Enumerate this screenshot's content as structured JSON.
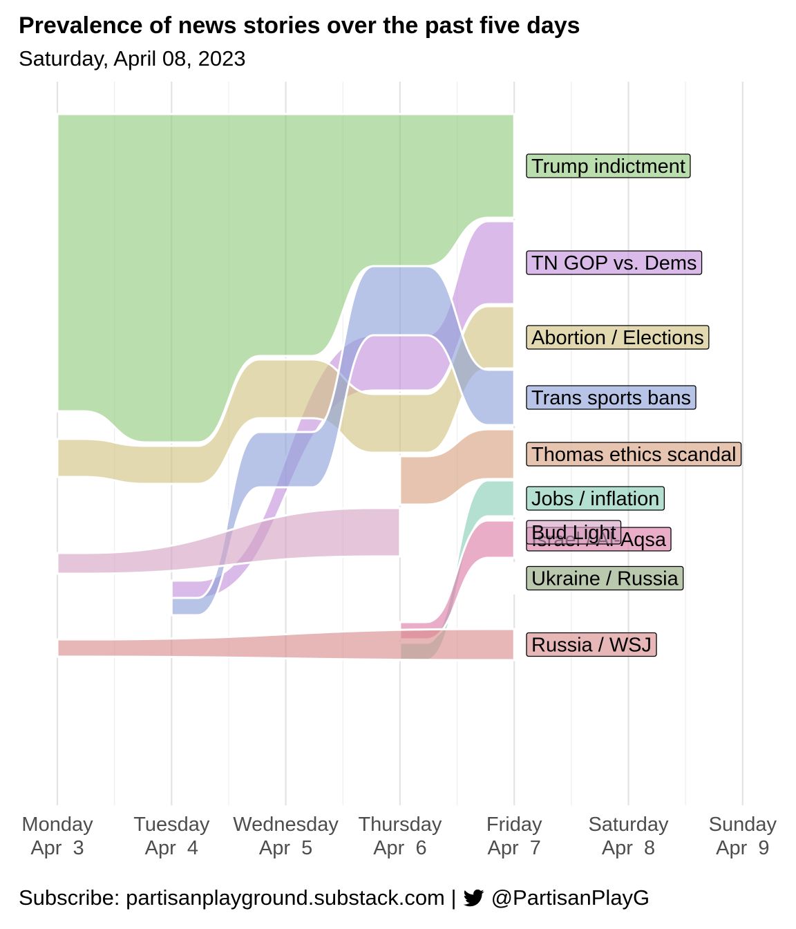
{
  "title": "Prevalence of news stories over the past five days",
  "subtitle": "Saturday, April 08, 2023",
  "caption": {
    "prefix": "Subscribe: partisanplayground.substack.com |",
    "handle": "@PartisanPlayG",
    "icon": "twitter-bird-icon"
  },
  "chart_data": {
    "type": "area",
    "subtype": "ranked bump/alluvial stream",
    "title": "Prevalence of news stories over the past five days",
    "subtitle": "Saturday, April 08, 2023",
    "x_ticks": [
      {
        "day": "Monday",
        "date": "Apr  3"
      },
      {
        "day": "Tuesday",
        "date": "Apr  4"
      },
      {
        "day": "Wednesday",
        "date": "Apr  5"
      },
      {
        "day": "Thursday",
        "date": "Apr  6"
      },
      {
        "day": "Friday",
        "date": "Apr  7"
      },
      {
        "day": "Saturday",
        "date": "Apr  8"
      },
      {
        "day": "Sunday",
        "date": "Apr  9"
      }
    ],
    "grid": true,
    "legend": "direct labels at right of Friday",
    "ylim": [
      0,
      100
    ],
    "series": [
      {
        "name": "Trump indictment",
        "color": "#8fc97c",
        "values": [
          {
            "day": 0,
            "y0": 0,
            "y1": 43
          },
          {
            "day": 1,
            "y0": 0,
            "y1": 47.5
          },
          {
            "day": 2,
            "y0": 0,
            "y1": 35
          },
          {
            "day": 3,
            "y0": 0,
            "y1": 22
          },
          {
            "day": 4,
            "y0": 0,
            "y1": 15
          }
        ]
      },
      {
        "name": "TN GOP vs. Dems",
        "color": "#c38fdb",
        "values": [
          {
            "day": 0,
            "y0": null,
            "y1": null
          },
          {
            "day": 1,
            "y0": 67.5,
            "y1": 70
          },
          {
            "day": 2,
            "y0": null,
            "y1": null
          },
          {
            "day": 3,
            "y0": 32,
            "y1": 40
          },
          {
            "day": 4,
            "y0": 15.5,
            "y1": 27.5
          }
        ]
      },
      {
        "name": "Abortion / Elections",
        "color": "#d2c17f",
        "values": [
          {
            "day": 0,
            "y0": 47,
            "y1": 52.5
          },
          {
            "day": 1,
            "y0": 48,
            "y1": 53.5
          },
          {
            "day": 2,
            "y0": 35.5,
            "y1": 44
          },
          {
            "day": 3,
            "y0": 40.5,
            "y1": 49
          },
          {
            "day": 4,
            "y0": 27.8,
            "y1": 36.8
          }
        ]
      },
      {
        "name": "Trans sports bans",
        "color": "#8d9fd8",
        "values": [
          {
            "day": 0,
            "y0": null,
            "y1": null
          },
          {
            "day": 1,
            "y0": 70,
            "y1": 72.5
          },
          {
            "day": 2,
            "y0": 46,
            "y1": 54
          },
          {
            "day": 3,
            "y0": 22,
            "y1": 32
          },
          {
            "day": 4,
            "y0": 37,
            "y1": 45
          }
        ]
      },
      {
        "name": "Thomas ethics scandal",
        "color": "#d9a07e",
        "values": [
          {
            "day": 0,
            "y0": null,
            "y1": null
          },
          {
            "day": 1,
            "y0": null,
            "y1": null
          },
          {
            "day": 2,
            "y0": null,
            "y1": null
          },
          {
            "day": 3,
            "y0": 49.5,
            "y1": 56.5
          },
          {
            "day": 4,
            "y0": 45.6,
            "y1": 52.8
          }
        ]
      },
      {
        "name": "Jobs / inflation",
        "color": "#85cdb5",
        "values": [
          {
            "day": 0,
            "y0": null,
            "y1": null
          },
          {
            "day": 1,
            "y0": null,
            "y1": null
          },
          {
            "day": 2,
            "y0": null,
            "y1": null
          },
          {
            "day": 3,
            "y0": 76.5,
            "y1": 79
          },
          {
            "day": 4,
            "y0": 53,
            "y1": 58.2
          }
        ]
      },
      {
        "name": "Israel / Al-Aqsa",
        "color": "#dd7aa7",
        "values": [
          {
            "day": 0,
            "y0": null,
            "y1": null
          },
          {
            "day": 1,
            "y0": null,
            "y1": null
          },
          {
            "day": 2,
            "y0": null,
            "y1": null
          },
          {
            "day": 3,
            "y0": 73.5,
            "y1": 76
          },
          {
            "day": 4,
            "y0": 58.8,
            "y1": 64.2
          }
        ]
      },
      {
        "name": "Ukraine / Russia",
        "color": "#8fa67a",
        "values": [
          {
            "day": 0,
            "y0": null,
            "y1": null
          },
          {
            "day": 1,
            "y0": null,
            "y1": null
          },
          {
            "day": 2,
            "y0": null,
            "y1": null
          },
          {
            "day": 3,
            "y0": null,
            "y1": null
          },
          {
            "day": 4,
            "y0": 64.8,
            "y1": 69.5
          }
        ]
      },
      {
        "name": "Bud Light",
        "color": "#d3a2c4",
        "values": [
          {
            "day": 0,
            "y0": 63.5,
            "y1": 66.5
          },
          {
            "day": 1,
            "y0": null,
            "y1": null
          },
          {
            "day": 2,
            "y0": null,
            "y1": null
          },
          {
            "day": 3,
            "y0": 57,
            "y1": 64
          }
        ]
      },
      {
        "name": "Russia / WSJ",
        "color": "#d88a8a",
        "values": [
          {
            "day": 0,
            "y0": 76,
            "y1": 78.5
          },
          {
            "day": 1,
            "y0": null,
            "y1": null
          },
          {
            "day": 2,
            "y0": null,
            "y1": null
          },
          {
            "day": 3,
            "y0": null,
            "y1": null
          },
          {
            "day": 4,
            "y0": 74.5,
            "y1": 79
          }
        ]
      }
    ]
  }
}
